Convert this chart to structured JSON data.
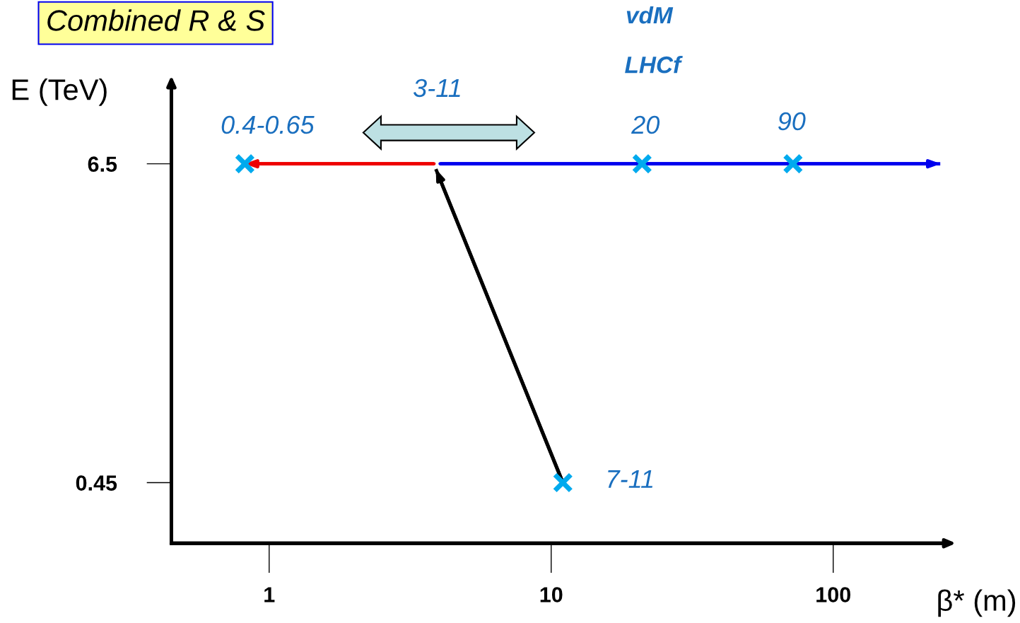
{
  "chart_data": {
    "type": "scatter",
    "title": "Combined R & S",
    "xlabel": "β* (m)",
    "ylabel": "E (TeV)",
    "log": "x",
    "xlim": [
      0.45,
      240
    ],
    "xticks": [
      1,
      10,
      100
    ],
    "ylim": [
      -0.7,
      8.0
    ],
    "yticks": [
      0.45,
      6.5
    ],
    "grid": false,
    "series": [
      {
        "type": "line",
        "color": "#ee0000",
        "x": [
          3.84,
          0.82
        ],
        "values": [
          6.5,
          6.5
        ]
      },
      {
        "type": "line",
        "color": "#0000ee",
        "x": [
          4.04,
          240
        ],
        "values": [
          6.5,
          6.5
        ]
      },
      {
        "type": "line",
        "color": "#000000",
        "x": [
          11,
          3.9
        ],
        "values": [
          0.45,
          6.4
        ]
      },
      {
        "color": "#00aaee",
        "x": [
          0.82,
          21,
          72,
          11
        ],
        "values": [
          6.5,
          6.5,
          6.5,
          0.45
        ],
        "marker": "cross"
      }
    ],
    "annotations": [
      "3-11",
      "0.4-0.65",
      "20",
      "90",
      "vdM",
      "LHCf",
      "7-11"
    ]
  }
}
